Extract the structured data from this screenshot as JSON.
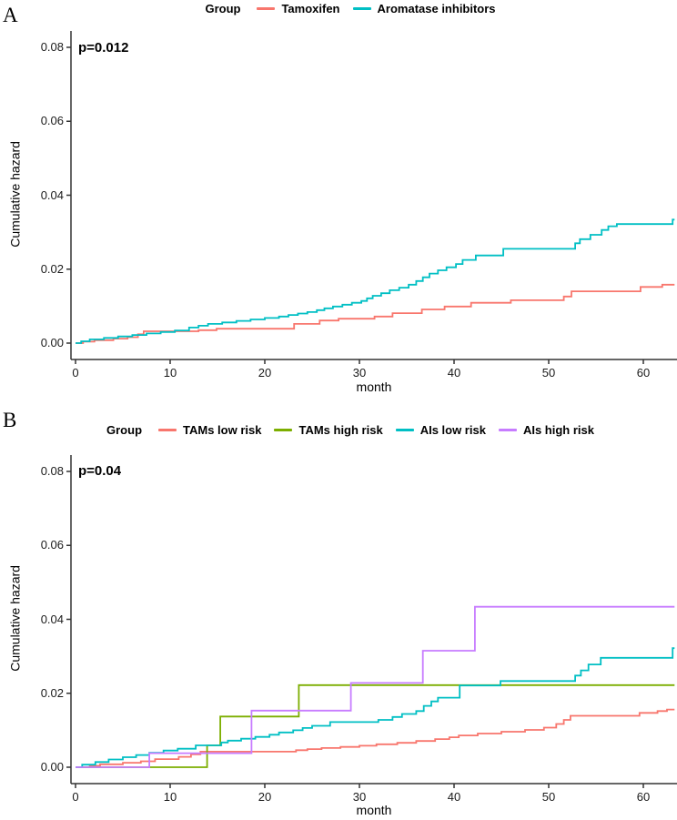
{
  "figure_title": "",
  "chart_data": [
    {
      "panel_label": "A",
      "type": "line",
      "line_style": "step-after",
      "p_value": "p=0.012",
      "legend_title": "Group",
      "legend_position": "top-center",
      "grid": false,
      "xlabel": "month",
      "ylabel": "Cumulative hazard",
      "xlim": [
        0,
        63.3
      ],
      "ylim": [
        0,
        0.08
      ],
      "xticks": [
        0,
        10,
        20,
        30,
        40,
        50,
        60
      ],
      "ytick_labels": [
        "0.00",
        "0.02",
        "0.04",
        "0.06",
        "0.08"
      ],
      "series": [
        {
          "name": "Tamoxifen",
          "color": "#F8766D",
          "points": [
            [
              0,
              0
            ],
            [
              0.8,
              0.0004
            ],
            [
              2,
              0.0008
            ],
            [
              4,
              0.0012
            ],
            [
              5.5,
              0.0016
            ],
            [
              6.6,
              0.0024
            ],
            [
              7.2,
              0.0032
            ],
            [
              13,
              0.0035
            ],
            [
              14.9,
              0.0039
            ],
            [
              23.1,
              0.0052
            ],
            [
              25.8,
              0.0061
            ],
            [
              27.8,
              0.0066
            ],
            [
              31.6,
              0.0072
            ],
            [
              33.5,
              0.0081
            ],
            [
              36.6,
              0.0091
            ],
            [
              39,
              0.0099
            ],
            [
              41.8,
              0.0109
            ],
            [
              46,
              0.0116
            ],
            [
              51.6,
              0.0126
            ],
            [
              52.4,
              0.014
            ],
            [
              59.7,
              0.0152
            ],
            [
              62,
              0.0158
            ]
          ]
        },
        {
          "name": "Aromatase inhibitors",
          "color": "#00BFC4",
          "points": [
            [
              0,
              0
            ],
            [
              0.6,
              0.0005
            ],
            [
              1.5,
              0.001
            ],
            [
              3,
              0.0014
            ],
            [
              4.5,
              0.0018
            ],
            [
              6,
              0.0022
            ],
            [
              7.5,
              0.0026
            ],
            [
              9,
              0.003
            ],
            [
              10.5,
              0.0034
            ],
            [
              12,
              0.0042
            ],
            [
              13,
              0.0047
            ],
            [
              14,
              0.0052
            ],
            [
              15.5,
              0.0056
            ],
            [
              17,
              0.006
            ],
            [
              18.5,
              0.0064
            ],
            [
              20,
              0.0068
            ],
            [
              21.5,
              0.0072
            ],
            [
              22.5,
              0.0076
            ],
            [
              23.5,
              0.008
            ],
            [
              24.5,
              0.0084
            ],
            [
              25.5,
              0.0089
            ],
            [
              26.3,
              0.0094
            ],
            [
              27.2,
              0.0099
            ],
            [
              28.2,
              0.0104
            ],
            [
              29.2,
              0.0109
            ],
            [
              30.2,
              0.0114
            ],
            [
              30.8,
              0.0121
            ],
            [
              31.4,
              0.0128
            ],
            [
              32.3,
              0.0135
            ],
            [
              33.2,
              0.0143
            ],
            [
              34.2,
              0.015
            ],
            [
              35.2,
              0.0158
            ],
            [
              36,
              0.0168
            ],
            [
              36.7,
              0.0178
            ],
            [
              37.4,
              0.0188
            ],
            [
              38.3,
              0.0197
            ],
            [
              39.2,
              0.0205
            ],
            [
              40.2,
              0.0214
            ],
            [
              40.9,
              0.0225
            ],
            [
              42.3,
              0.0237
            ],
            [
              45.2,
              0.0255
            ],
            [
              52.8,
              0.027
            ],
            [
              53.3,
              0.0281
            ],
            [
              54.4,
              0.0293
            ],
            [
              55.6,
              0.0306
            ],
            [
              56.3,
              0.0316
            ],
            [
              57.2,
              0.0322
            ],
            [
              63.1,
              0.0334
            ]
          ]
        }
      ]
    },
    {
      "panel_label": "B",
      "type": "line",
      "line_style": "step-after",
      "p_value": "p=0.04",
      "legend_title": "Group",
      "legend_position": "top-center",
      "grid": false,
      "xlabel": "month",
      "ylabel": "Cumulative hazard",
      "xlim": [
        0,
        63.3
      ],
      "ylim": [
        0,
        0.08
      ],
      "xticks": [
        0,
        10,
        20,
        30,
        40,
        50,
        60
      ],
      "ytick_labels": [
        "0.00",
        "0.02",
        "0.04",
        "0.06",
        "0.08"
      ],
      "series": [
        {
          "name": "TAMs low risk",
          "color": "#F8766D",
          "points": [
            [
              0,
              0
            ],
            [
              1.5,
              0.0004
            ],
            [
              2.6,
              0.0008
            ],
            [
              5,
              0.0012
            ],
            [
              6.9,
              0.0016
            ],
            [
              8.4,
              0.0022
            ],
            [
              10.9,
              0.0028
            ],
            [
              12.2,
              0.0035
            ],
            [
              13.2,
              0.0042
            ],
            [
              23.3,
              0.0046
            ],
            [
              24.5,
              0.0049
            ],
            [
              26,
              0.0052
            ],
            [
              28,
              0.0055
            ],
            [
              30,
              0.0058
            ],
            [
              31.8,
              0.0062
            ],
            [
              34,
              0.0066
            ],
            [
              36,
              0.0071
            ],
            [
              38,
              0.0076
            ],
            [
              39.5,
              0.0081
            ],
            [
              40.5,
              0.0086
            ],
            [
              42.5,
              0.0091
            ],
            [
              45,
              0.0096
            ],
            [
              47.5,
              0.0101
            ],
            [
              49.5,
              0.0107
            ],
            [
              50.8,
              0.0117
            ],
            [
              51.6,
              0.0128
            ],
            [
              52.3,
              0.0139
            ],
            [
              59.6,
              0.0147
            ],
            [
              61.5,
              0.0152
            ],
            [
              62.5,
              0.0156
            ]
          ]
        },
        {
          "name": "TAMs high risk",
          "color": "#7CAE00",
          "points": [
            [
              0,
              0
            ],
            [
              13.9,
              0.0059
            ],
            [
              15.3,
              0.0137
            ],
            [
              23.6,
              0.0222
            ]
          ]
        },
        {
          "name": "AIs low risk",
          "color": "#00BFC4",
          "points": [
            [
              0,
              0
            ],
            [
              0.7,
              0.0007
            ],
            [
              2.1,
              0.0014
            ],
            [
              3.5,
              0.0021
            ],
            [
              5,
              0.0027
            ],
            [
              6.4,
              0.0033
            ],
            [
              7.8,
              0.0039
            ],
            [
              9.3,
              0.0045
            ],
            [
              10.8,
              0.005
            ],
            [
              12.7,
              0.0059
            ],
            [
              15.4,
              0.0067
            ],
            [
              16.1,
              0.0072
            ],
            [
              17.5,
              0.0077
            ],
            [
              19,
              0.0082
            ],
            [
              20.5,
              0.0088
            ],
            [
              21.5,
              0.0094
            ],
            [
              23,
              0.01
            ],
            [
              24,
              0.0106
            ],
            [
              25,
              0.0112
            ],
            [
              26.9,
              0.0122
            ],
            [
              32,
              0.0128
            ],
            [
              33.5,
              0.0136
            ],
            [
              34.5,
              0.0144
            ],
            [
              36,
              0.0152
            ],
            [
              36.8,
              0.0166
            ],
            [
              37.6,
              0.0178
            ],
            [
              38.3,
              0.0188
            ],
            [
              40.6,
              0.0221
            ],
            [
              44.9,
              0.0233
            ],
            [
              52.8,
              0.0248
            ],
            [
              53.4,
              0.0262
            ],
            [
              54.2,
              0.0278
            ],
            [
              55.5,
              0.0296
            ],
            [
              63.1,
              0.0322
            ]
          ]
        },
        {
          "name": "AIs high risk",
          "color": "#C77CFF",
          "points": [
            [
              0,
              0
            ],
            [
              7.8,
              0.0038
            ],
            [
              18.6,
              0.0153
            ],
            [
              29.1,
              0.0228
            ],
            [
              36.7,
              0.0315
            ],
            [
              42.2,
              0.0434
            ]
          ]
        }
      ]
    }
  ]
}
